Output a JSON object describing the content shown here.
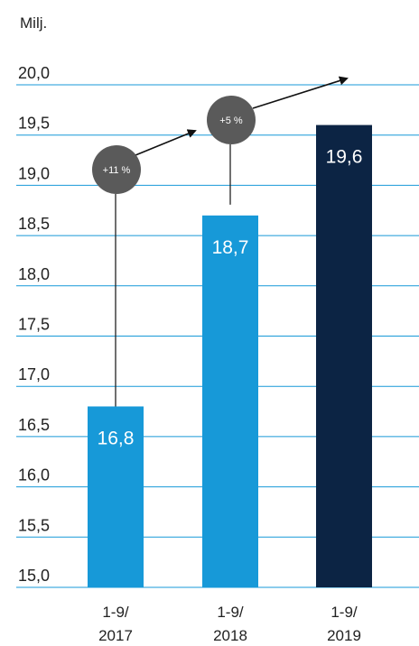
{
  "chart_data": {
    "type": "bar",
    "unit_label": "Milj.",
    "categories": [
      [
        "1-9/",
        "2017"
      ],
      [
        "1-9/",
        "2018"
      ],
      [
        "1-9/",
        "2019"
      ]
    ],
    "values": [
      16.8,
      18.7,
      19.6
    ],
    "value_labels": [
      "16,8",
      "18,7",
      "19,6"
    ],
    "ylim": [
      15.0,
      20.0
    ],
    "yticks": [
      "15,0",
      "15,5",
      "16,0",
      "16,5",
      "17,0",
      "17,5",
      "18,0",
      "18,5",
      "19,0",
      "19,5",
      "20,0"
    ],
    "grid": true,
    "bar_colors": [
      "#1799d8",
      "#1799d8",
      "#0c2444"
    ],
    "grid_color": "#1799d8",
    "annotations": [
      {
        "label": "+11 %",
        "color": "#5a5a5a"
      },
      {
        "label": "+5 %",
        "color": "#5a5a5a"
      }
    ]
  }
}
